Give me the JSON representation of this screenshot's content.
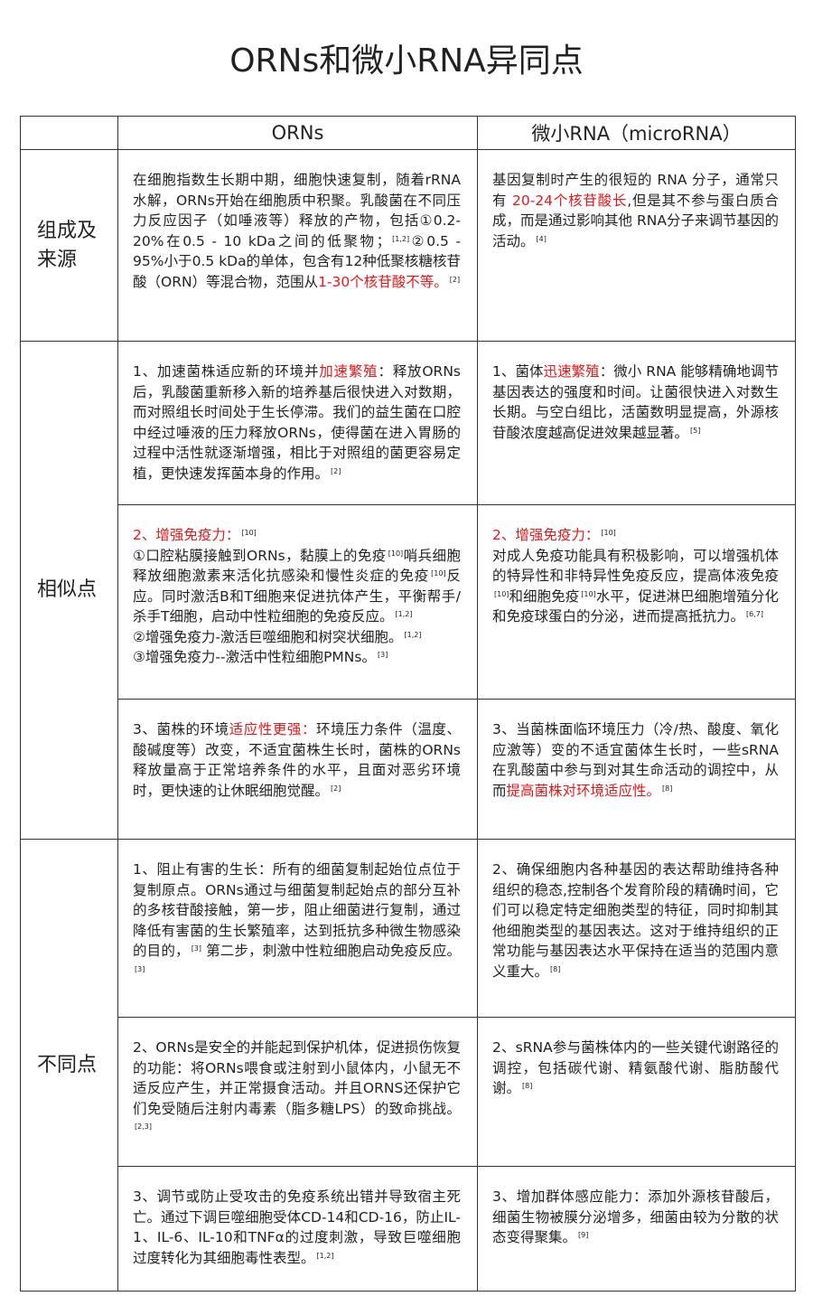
{
  "title": "ORNs和微小RNA异同点",
  "table": {
    "header": [
      "ORNs",
      "微小RNA（microRNA）"
    ],
    "groups": [
      {
        "label": "组成及来源",
        "rows": [
          {
            "orns": [
              [
                "在细胞指数生长期中期，细胞快速复制，随着rRNA水解，ORNs开始在细胞质中积聚。乳酸菌在不同压力反应因子（如唾液等）释放的产物，包括①0.2-20%在0.5 - 10 kDa之间的低聚物；",
                {
                  "sup": "[1,2]"
                },
                "②0.5 - 95%小于0.5 kDa的单体，包含有12种低聚核糖核苷酸（ORN）等混合物，范围从",
                {
                  "red": "1-30个核苷酸不等。"
                },
                {
                  "sup": "[2]"
                }
              ]
            ],
            "mirna": [
              [
                "基因复制时产生的很短的 RNA 分子，通常只有 ",
                {
                  "red": "20-24个核苷酸长"
                },
                ",但是其不参与蛋白质合成，而是通过影响其他 RNA分子来调节基因的活动。",
                {
                  "sup": "[4]"
                }
              ]
            ]
          }
        ]
      },
      {
        "label": "相似点",
        "rows": [
          {
            "orns": [
              [
                "1、加速菌株适应新的环境并",
                {
                  "red": "加速繁殖"
                },
                "：释放ORNs后，乳酸菌重新移入新的培养基后很快进入对数期，而对照组长时间处于生长停滞。我们的益生菌在口腔中经过唾液的压力释放ORNs，使得菌在进入胃肠的过程中活性就逐渐增强，相比于对照组的菌更容易定植，更快速发挥菌本身的作用。",
                {
                  "sup": "[2]"
                }
              ]
            ],
            "mirna": [
              [
                "1、菌体",
                {
                  "red": "迅速繁殖"
                },
                "：微小 RNA 能够精确地调节基因表达的强度和时间。让菌很快进入对数生长期。与空白组比，活菌数明显提高，外源核苷酸浓度越高促进效果越显著。",
                {
                  "sup": "[5]"
                }
              ]
            ]
          },
          {
            "orns": [
              [
                {
                  "red": "2、增强免疫力："
                },
                {
                  "sup": "[10]"
                }
              ],
              [
                "①口腔粘膜接触到ORNs，黏膜上的免疫",
                {
                  "sup": "[10]"
                },
                "哨兵细胞释放细胞激素来活化抗感染和慢性炎症的免疫",
                {
                  "sup": "[10]"
                },
                "反应。同时激活B和T细胞来促进抗体产生，平衡帮手/杀手T细胞，启动中性粒细胞的免疫反应。",
                {
                  "sup": "[1,2]"
                }
              ],
              [
                "②增强免疫力-激活巨噬细胞和树突状细胞。",
                {
                  "sup": "[1,2]"
                }
              ],
              [
                "③增强免疫力--激活中性粒细胞PMNs。",
                {
                  "sup": "[3]"
                }
              ]
            ],
            "mirna": [
              [
                {
                  "red": "2、增强免疫力："
                },
                {
                  "sup": "[10]"
                }
              ],
              [
                "对成人免疫功能具有积极影响，可以增强机体的特异性和非特异性免疫反应，提高体液免疫",
                {
                  "sup": "[10]"
                },
                "和细胞免疫",
                {
                  "sup": "[10]"
                },
                "水平，促进淋巴细胞增殖分化和免疫球蛋白的分泌，进而提高抵抗力。",
                {
                  "sup": "[6,7]"
                }
              ]
            ]
          },
          {
            "orns": [
              [
                "3、菌株的环境",
                {
                  "red": "适应性更强："
                },
                "环境压力条件（温度、酸碱度等）改变，不适宜菌株生长时，菌株的ORNs释放量高于正常培养条件的水平，且面对恶劣环境时，更快速的让休眠细胞觉醒。",
                {
                  "sup": "[2]"
                }
              ]
            ],
            "mirna": [
              [
                "3、当菌株面临环境压力（冷/热、酸度、氧化应激等）变的不适宜菌体生长时，一些sRNA在乳酸菌中参与到对其生命活动的调控中，从而",
                {
                  "red": "提高菌株对环境适应性。"
                },
                {
                  "sup": "[8]"
                }
              ]
            ]
          }
        ]
      },
      {
        "label": "不同点",
        "rows": [
          {
            "orns": [
              [
                "1、阻止有害的生长：所有的细菌复制起始位点位于复制原点。ORNs通过与细菌复制起始点的部分互补的多核苷酸接触，第一步，阻止细菌进行复制，通过降低有害菌的生长繁殖率，达到抵抗多种微生物感染的目的，",
                {
                  "sup": "[3]"
                },
                " 第二步，刺激中性粒细胞启动免疫反应。",
                {
                  "sup": "[3]"
                }
              ]
            ],
            "mirna": [
              [
                "2、确保细胞内各种基因的表达帮助维持各种组织的稳态,控制各个发育阶段的精确时间，它们可以稳定特定细胞类型的特征，同时抑制其他细胞类型的基因表达。这对于维持组织的正常功能与基因表达水平保持在适当的范围内意义重大。",
                {
                  "sup": "[8]"
                }
              ]
            ]
          },
          {
            "orns": [
              [
                "2、ORNs是安全的并能起到保护机体，促进损伤恢复的功能：将ORNs喂食或注射到小鼠体内，小鼠无不适反应产生，并正常摄食活动。并且ORNS还保护它们免受随后注射内毒素（脂多糖LPS）的致命挑战。",
                {
                  "sup": "[2,3]"
                }
              ]
            ],
            "mirna": [
              [
                "2、sRNA参与菌株体内的一些关键代谢路径的调控，包括碳代谢、精氨酸代谢、脂肪酸代谢。",
                {
                  "sup": "[8]"
                }
              ]
            ]
          },
          {
            "orns": [
              [
                "3、调节或防止受攻击的免疫系统出错并导致宿主死亡。通过下调巨噬细胞受体CD-14和CD-16，防止IL-1、IL-6、IL-10和TNFα的过度刺激，导致巨噬细胞过度转化为其细胞毒性表型。",
                {
                  "sup": "[1,2]"
                }
              ]
            ],
            "mirna": [
              [
                "3、增加群体感应能力：添加外源核苷酸后，细菌生物被膜分泌增多，细菌由较为分散的状态变得聚集。",
                {
                  "sup": "[9]"
                }
              ]
            ]
          }
        ]
      }
    ]
  }
}
